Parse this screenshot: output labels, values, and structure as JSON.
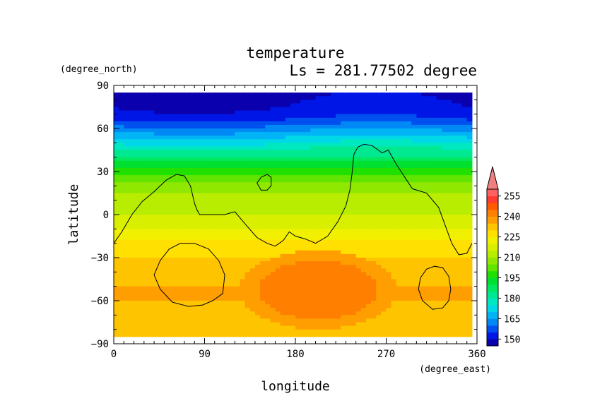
{
  "chart_data": {
    "type": "heatmap",
    "title": "temperature",
    "subtitle": "Ls = 281.77502 degree",
    "xlabel": "longitude",
    "ylabel": "latitude",
    "x_unit": "(degree_east)",
    "y_unit": "(degree_north)",
    "xlim": [
      0,
      360
    ],
    "ylim": [
      -90,
      90
    ],
    "x_ticks": [
      0,
      90,
      180,
      270,
      360
    ],
    "y_ticks": [
      -90,
      -60,
      -30,
      0,
      30,
      60,
      90
    ],
    "x_tick_labels": [
      "0",
      "90",
      "180",
      "270",
      "360"
    ],
    "y_tick_labels": [
      "−90",
      "−60",
      "−30",
      "0",
      "30",
      "60",
      "90"
    ],
    "data_lat_range": [
      -85,
      85
    ],
    "data_lon_range": [
      0,
      355
    ],
    "colorbar": {
      "levels": [
        145,
        150,
        155,
        160,
        165,
        170,
        175,
        180,
        185,
        190,
        195,
        200,
        205,
        210,
        215,
        220,
        225,
        230,
        235,
        240,
        245,
        250,
        255,
        260
      ],
      "colors": [
        "#0a00ad",
        "#0016e6",
        "#0050f0",
        "#0088f5",
        "#00b4f5",
        "#00d8e8",
        "#00e8c0",
        "#00e890",
        "#00e860",
        "#00e030",
        "#20e000",
        "#60e400",
        "#90e800",
        "#b8ec00",
        "#d8f000",
        "#f0f000",
        "#ffe000",
        "#ffc400",
        "#ff9e00",
        "#ff8000",
        "#ff5a00",
        "#ff3a30",
        "#ff6060"
      ],
      "tick_values": [
        150,
        165,
        180,
        195,
        210,
        225,
        240,
        255
      ],
      "tick_labels": [
        "150",
        "165",
        "180",
        "195",
        "210",
        "225",
        "240",
        "255"
      ],
      "extend_max_color": "#f08080"
    },
    "zonal_profile": {
      "lat": [
        85,
        75,
        67,
        62,
        57,
        52,
        47,
        42,
        37,
        32,
        27,
        20,
        10,
        0,
        -10,
        -20,
        -30,
        -40,
        -50,
        -60,
        -70,
        -80,
        -85
      ],
      "temperature": [
        148,
        150,
        154,
        160,
        166,
        172,
        178,
        184,
        190,
        196,
        202,
        208,
        212,
        215,
        220,
        226,
        230,
        233,
        235,
        235,
        234,
        232,
        231
      ]
    },
    "warm_anomaly": {
      "lon_range": [
        125,
        280
      ],
      "lat_range": [
        -80,
        -25
      ],
      "max": 243
    },
    "topography_contours": [
      {
        "lon": [
          0,
          8,
          18,
          28,
          40,
          52,
          62,
          70,
          76,
          80,
          82,
          85,
          92,
          100,
          110,
          120,
          132,
          142,
          152,
          160,
          168,
          174,
          180,
          190,
          200,
          212,
          222,
          230,
          234,
          236,
          238,
          242,
          248,
          256,
          262,
          266,
          272,
          280,
          296,
          310,
          322,
          335,
          342,
          350,
          355
        ],
        "lat": [
          -20,
          -12,
          0,
          9,
          16,
          24,
          28,
          27,
          20,
          8,
          4,
          0,
          0,
          0,
          0,
          2,
          -8,
          -16,
          -20,
          -22,
          -18,
          -12,
          -15,
          -17,
          -20,
          -15,
          -5,
          6,
          17,
          28,
          42,
          47,
          49,
          48,
          45,
          43,
          45,
          35,
          18,
          15,
          5,
          -20,
          -28,
          -27,
          -20
        ]
      },
      {
        "lon": [
          40,
          46,
          55,
          66,
          80,
          94,
          104,
          110,
          108,
          98,
          88,
          74,
          58,
          46,
          40
        ],
        "lat": [
          -42,
          -32,
          -24,
          -20,
          -20,
          -24,
          -32,
          -42,
          -55,
          -60,
          -63,
          -64,
          -61,
          -52,
          -42
        ]
      },
      {
        "lon": [
          142,
          146,
          152,
          156,
          156,
          152,
          146,
          142
        ],
        "lat": [
          22,
          26,
          28,
          26,
          20,
          17,
          17,
          22
        ]
      },
      {
        "lon": [
          304,
          310,
          318,
          326,
          332,
          334,
          332,
          326,
          316,
          306,
          302,
          304
        ],
        "lat": [
          -44,
          -38,
          -36,
          -37,
          -43,
          -52,
          -60,
          -65,
          -66,
          -60,
          -52,
          -44
        ]
      }
    ]
  }
}
